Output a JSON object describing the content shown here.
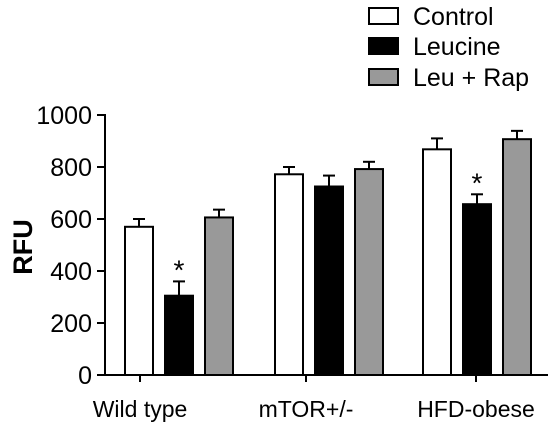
{
  "chart_data": {
    "type": "bar",
    "title": "",
    "xlabel": "",
    "ylabel": "RFU",
    "ylim": [
      0,
      1000
    ],
    "yticks": [
      0,
      200,
      400,
      600,
      800,
      1000
    ],
    "categories": [
      "Wild type",
      "mTOR+/-",
      "HFD-obese"
    ],
    "series": [
      {
        "name": "Control",
        "color": "#ffffff",
        "values": [
          570,
          772,
          868
        ],
        "errors": [
          30,
          28,
          42
        ]
      },
      {
        "name": "Leucine",
        "color": "#000000",
        "values": [
          305,
          725,
          657
        ],
        "errors": [
          55,
          42,
          38
        ]
      },
      {
        "name": "Leu + Rap",
        "color": "#999999",
        "values": [
          606,
          792,
          907
        ],
        "errors": [
          30,
          28,
          32
        ]
      }
    ],
    "annotations": [
      {
        "text": "*",
        "category": "Wild type",
        "series": "Leucine"
      },
      {
        "text": "*",
        "category": "HFD-obese",
        "series": "Leucine"
      }
    ],
    "legend_position": "top-right",
    "grid": false
  }
}
